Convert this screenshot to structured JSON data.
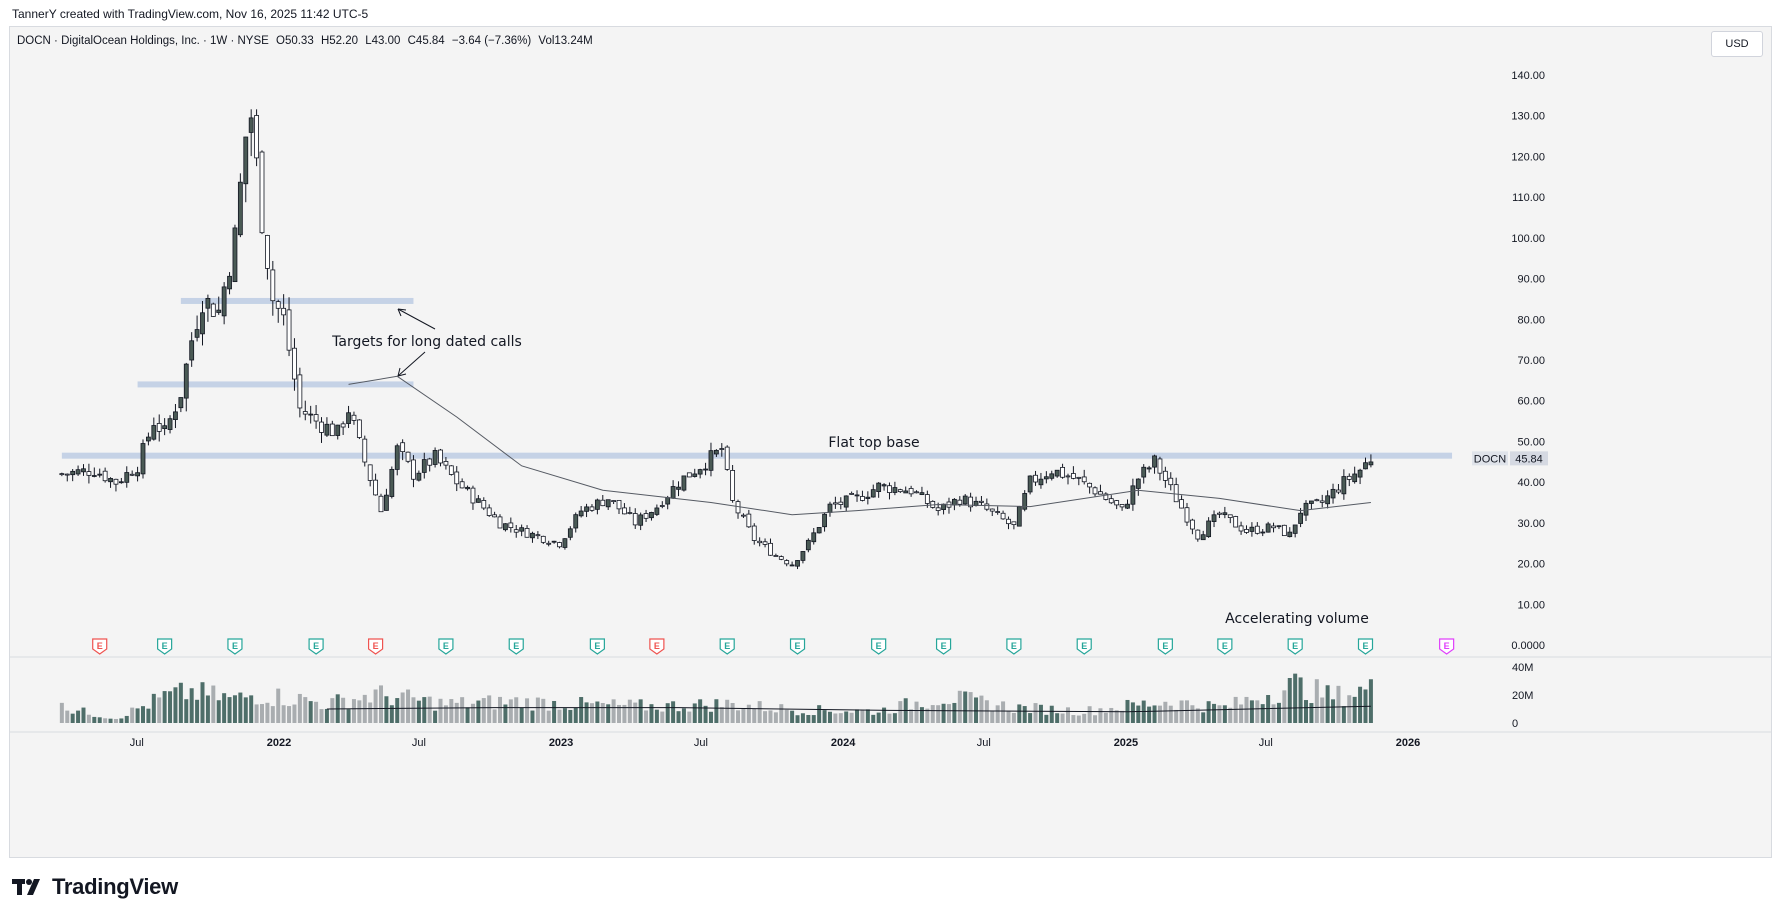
{
  "header": {
    "credit": "TannerY created with TradingView.com, Nov 16, 2025 11:42 UTC-5"
  },
  "legend": {
    "symbol_line": "DOCN · DigitalOcean Holdings, Inc. · 1W · NYSE",
    "open": "O50.33",
    "high": "H52.20",
    "low": "L43.00",
    "close": "C45.84",
    "change": "−3.64 (−7.36%)",
    "volume": "Vol13.24M"
  },
  "currency_button": "USD",
  "colors": {
    "up": "#4a5a55",
    "down": "#ffffff",
    "candle_outline": "#131722",
    "level_band": "#c5d2e6",
    "ma_line": "#555a63",
    "earnings_past": "#26a69a",
    "earnings_miss": "#ef5350",
    "earnings_future": "#e040fb",
    "volume_dark": "#4e6e69",
    "volume_light": "#a9adb0"
  },
  "logo_text": "TradingView",
  "chart_data": {
    "type": "candlestick",
    "symbol": "DOCN",
    "interval": "1W",
    "y_axis": {
      "ticks": [
        0,
        10,
        20,
        30,
        40,
        50,
        60,
        70,
        80,
        90,
        100,
        110,
        120,
        130,
        140
      ],
      "tick_labels": [
        "0.0000",
        "10.00",
        "20.00",
        "30.00",
        "40.00",
        "50.00",
        "60.00",
        "70.00",
        "80.00",
        "90.00",
        "100.00",
        "110.00",
        "120.00",
        "130.00",
        "140.00"
      ],
      "ylim": [
        0,
        145
      ]
    },
    "x_axis": {
      "labels": [
        "Jul",
        "2022",
        "Jul",
        "2023",
        "Jul",
        "2024",
        "Jul",
        "2025",
        "Jul",
        "2026"
      ],
      "label_dates": [
        "2021-07-01",
        "2022-01-01",
        "2022-07-01",
        "2023-01-01",
        "2023-07-01",
        "2024-01-01",
        "2024-07-01",
        "2025-01-01",
        "2025-07-01",
        "2026-01-01"
      ]
    },
    "price_series": [
      [
        "2021-03-26",
        42
      ],
      [
        "2021-05-07",
        43
      ],
      [
        "2021-06-04",
        40
      ],
      [
        "2021-07-02",
        44
      ],
      [
        "2021-07-23",
        55
      ],
      [
        "2021-08-06",
        52
      ],
      [
        "2021-08-27",
        62
      ],
      [
        "2021-09-10",
        75
      ],
      [
        "2021-09-24",
        85
      ],
      [
        "2021-10-15",
        82
      ],
      [
        "2021-11-05",
        100
      ],
      [
        "2021-11-19",
        125
      ],
      [
        "2021-11-26",
        130
      ],
      [
        "2021-12-10",
        105
      ],
      [
        "2021-12-24",
        85
      ],
      [
        "2022-01-07",
        80
      ],
      [
        "2022-01-28",
        58
      ],
      [
        "2022-02-18",
        55
      ],
      [
        "2022-03-18",
        52
      ],
      [
        "2022-04-01",
        58
      ],
      [
        "2022-04-22",
        45
      ],
      [
        "2022-05-13",
        33
      ],
      [
        "2022-06-03",
        48
      ],
      [
        "2022-06-24",
        42
      ],
      [
        "2022-07-22",
        46
      ],
      [
        "2022-08-19",
        40
      ],
      [
        "2022-09-16",
        35
      ],
      [
        "2022-10-14",
        30
      ],
      [
        "2022-11-11",
        28
      ],
      [
        "2022-12-30",
        25
      ],
      [
        "2023-01-27",
        33
      ],
      [
        "2023-03-03",
        36
      ],
      [
        "2023-04-07",
        30
      ],
      [
        "2023-05-05",
        34
      ],
      [
        "2023-06-02",
        40
      ],
      [
        "2023-07-14",
        46
      ],
      [
        "2023-07-28",
        48
      ],
      [
        "2023-08-11",
        35
      ],
      [
        "2023-09-08",
        26
      ],
      [
        "2023-10-06",
        22
      ],
      [
        "2023-10-27",
        20
      ],
      [
        "2023-11-17",
        25
      ],
      [
        "2023-12-15",
        34
      ],
      [
        "2024-01-19",
        36
      ],
      [
        "2024-02-16",
        39
      ],
      [
        "2024-03-29",
        38
      ],
      [
        "2024-05-03",
        33
      ],
      [
        "2024-05-31",
        36
      ],
      [
        "2024-06-28",
        34
      ],
      [
        "2024-08-09",
        29
      ],
      [
        "2024-08-30",
        40
      ],
      [
        "2024-09-27",
        43
      ],
      [
        "2024-10-25",
        41
      ],
      [
        "2024-11-22",
        38
      ],
      [
        "2024-12-27",
        33
      ],
      [
        "2025-01-17",
        41
      ],
      [
        "2025-02-07",
        45
      ],
      [
        "2025-03-07",
        36
      ],
      [
        "2025-04-04",
        27
      ],
      [
        "2025-05-02",
        32
      ],
      [
        "2025-06-06",
        28
      ],
      [
        "2025-07-11",
        29
      ],
      [
        "2025-08-01",
        27
      ],
      [
        "2025-08-15",
        33
      ],
      [
        "2025-09-12",
        35
      ],
      [
        "2025-10-10",
        40
      ],
      [
        "2025-10-31",
        43
      ],
      [
        "2025-11-14",
        45.84
      ]
    ],
    "moving_average": [
      [
        "2022-04-01",
        64
      ],
      [
        "2022-06-03",
        66
      ],
      [
        "2022-08-19",
        56
      ],
      [
        "2022-11-11",
        44
      ],
      [
        "2023-02-24",
        38
      ],
      [
        "2023-07-14",
        35
      ],
      [
        "2023-10-27",
        32
      ],
      [
        "2024-01-19",
        33
      ],
      [
        "2024-05-03",
        34.5
      ],
      [
        "2024-08-30",
        34
      ],
      [
        "2025-01-17",
        38
      ],
      [
        "2025-05-02",
        36
      ],
      [
        "2025-08-15",
        33
      ],
      [
        "2025-11-14",
        35
      ]
    ],
    "horizontal_levels": [
      {
        "start": "2021-08-27",
        "end": "2022-06-24",
        "value": 84.5
      },
      {
        "start": "2021-07-02",
        "end": "2022-06-24",
        "value": 64
      },
      {
        "start": "2021-03-26",
        "end": "2026-02-27",
        "value": 46.5
      }
    ],
    "earnings_markers": [
      {
        "date": "2021-05-14",
        "kind": "miss"
      },
      {
        "date": "2021-08-06",
        "kind": "past"
      },
      {
        "date": "2021-11-05",
        "kind": "past"
      },
      {
        "date": "2022-02-18",
        "kind": "past"
      },
      {
        "date": "2022-05-06",
        "kind": "miss"
      },
      {
        "date": "2022-08-05",
        "kind": "past"
      },
      {
        "date": "2022-11-04",
        "kind": "past"
      },
      {
        "date": "2023-02-17",
        "kind": "past"
      },
      {
        "date": "2023-05-05",
        "kind": "miss"
      },
      {
        "date": "2023-08-04",
        "kind": "past"
      },
      {
        "date": "2023-11-03",
        "kind": "past"
      },
      {
        "date": "2024-02-16",
        "kind": "past"
      },
      {
        "date": "2024-05-10",
        "kind": "past"
      },
      {
        "date": "2024-08-09",
        "kind": "past"
      },
      {
        "date": "2024-11-08",
        "kind": "past"
      },
      {
        "date": "2025-02-21",
        "kind": "past"
      },
      {
        "date": "2025-05-09",
        "kind": "past"
      },
      {
        "date": "2025-08-08",
        "kind": "past"
      },
      {
        "date": "2025-11-07",
        "kind": "past"
      },
      {
        "date": "2026-02-20",
        "kind": "future"
      }
    ],
    "annotations": [
      {
        "text": "Targets for long dated calls"
      },
      {
        "text": "Flat top base"
      },
      {
        "text": "Accelerating volume"
      }
    ],
    "last_price": {
      "symbol": "DOCN",
      "value": "45.84"
    },
    "volume": {
      "tick_labels": [
        "40M",
        "20M",
        "0"
      ],
      "ylim": [
        0,
        40
      ],
      "samples_millions": [
        [
          "2021-04-02",
          12
        ],
        [
          "2021-06-04",
          4
        ],
        [
          "2021-08-06",
          22
        ],
        [
          "2021-09-10",
          26
        ],
        [
          "2021-11-05",
          20
        ],
        [
          "2021-12-03",
          24
        ],
        [
          "2022-01-28",
          20
        ],
        [
          "2022-03-04",
          16
        ],
        [
          "2022-05-06",
          24
        ],
        [
          "2022-08-05",
          16
        ],
        [
          "2022-11-04",
          18
        ],
        [
          "2023-02-17",
          15
        ],
        [
          "2023-05-05",
          14
        ],
        [
          "2023-08-04",
          16
        ],
        [
          "2023-11-03",
          11
        ],
        [
          "2024-02-16",
          10
        ],
        [
          "2024-05-10",
          22
        ],
        [
          "2024-08-09",
          13
        ],
        [
          "2024-11-08",
          10
        ],
        [
          "2025-02-21",
          18
        ],
        [
          "2025-05-09",
          13
        ],
        [
          "2025-08-08",
          32
        ],
        [
          "2025-09-26",
          22
        ],
        [
          "2025-11-07",
          28
        ]
      ],
      "average": [
        [
          "2022-03-04",
          10
        ],
        [
          "2022-10-07",
          11
        ],
        [
          "2023-06-02",
          11
        ],
        [
          "2024-03-01",
          9
        ],
        [
          "2025-01-03",
          8
        ],
        [
          "2025-11-14",
          12
        ]
      ]
    }
  }
}
